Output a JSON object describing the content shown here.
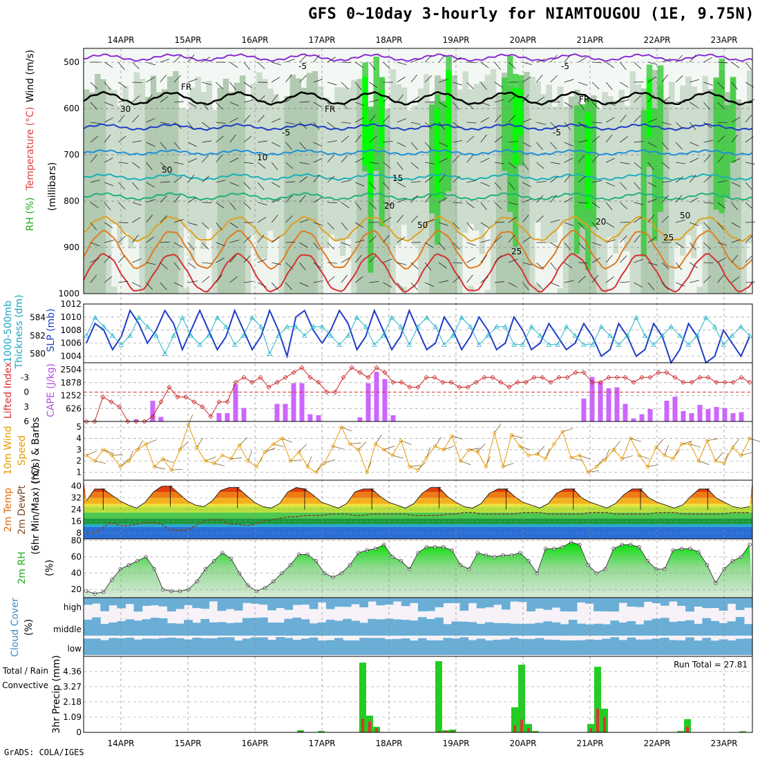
{
  "title": "GFS 0~10day 3-hourly for NIAMTOUGOU (1E, 9.75N)",
  "footer": "GrADS: COLA/IGES",
  "dates": [
    "14APR",
    "15APR",
    "16APR",
    "17APR",
    "18APR",
    "19APR",
    "20APR",
    "21APR",
    "22APR",
    "23APR"
  ],
  "colors": {
    "rh_green": "#33cc33",
    "rh_bright": "#00ff00",
    "rh_light": "#d9ead9",
    "cape_bar": "#cc66ff",
    "wind10m": "#e69900",
    "slp_line": "#1e3cc8",
    "thickness_line": "#22b4c8",
    "lifted_index": "#cc2222",
    "rh2m": "#22cc22",
    "cloud": "#6aaed6",
    "precip_total": "#22cc22",
    "precip_conv": "#e03333"
  },
  "panels": {
    "upper": {
      "y_label_rh": "RH (%)",
      "y_label_temp": "Temperature (°C)",
      "y_label_wind": "Wind (m/s)",
      "y_label_press": "(millibars)",
      "yticks": [
        "500",
        "600",
        "700",
        "800",
        "900",
        "1000"
      ],
      "contour_labels": [
        "-5",
        "FR",
        "-5",
        "10",
        "15",
        "20",
        "25",
        "30",
        "50"
      ]
    },
    "thickness": {
      "label1": "1000-500mb",
      "label2": "Thickness (dm)",
      "label3": "SLP (mb)",
      "yticks_left": [
        "584",
        "582",
        "580"
      ],
      "yticks_right": [
        "1012",
        "1010",
        "1008",
        "1006",
        "1004"
      ]
    },
    "cape": {
      "label1": "Lifted Index",
      "label2": "CAPE (J/kg)",
      "yticks_left": [
        "-3",
        "0",
        "3",
        "6"
      ],
      "yticks_right": [
        "2504",
        "1878",
        "1252",
        "626"
      ]
    },
    "wind": {
      "label1": "10m Wind",
      "label2": "Speed",
      "label3": "(m/s) & Barbs",
      "yticks": [
        "5",
        "4",
        "3",
        "2",
        "1"
      ]
    },
    "temp2m": {
      "label1": "2m Temp",
      "label2": "2m DewPt",
      "label3": "(6hr Min/Max) (°C)",
      "yticks": [
        "40",
        "32",
        "24",
        "16",
        "8"
      ]
    },
    "rh2m": {
      "label1": "2m RH",
      "label2": "(%)",
      "yticks": [
        "80",
        "60",
        "40",
        "20"
      ]
    },
    "cloud": {
      "label1": "Cloud Cover",
      "label2": "(%)",
      "levels": [
        "high",
        "middle",
        "low"
      ]
    },
    "precip": {
      "label1": "Total / Rain",
      "label2": "Convective",
      "label3": "3hr Precip (mm)",
      "yticks": [
        "4.36",
        "3.27",
        "2.18",
        "1.09",
        "0"
      ],
      "run_total": "Run Total = 27.81"
    }
  },
  "chart_data": [
    {
      "type": "line",
      "title": "SLP (mb)",
      "series": [
        {
          "name": "SLP (mb)",
          "values": [
            1006,
            1009,
            1008,
            1005,
            1007,
            1011,
            1009,
            1006,
            1008,
            1011,
            1009,
            1005,
            1008,
            1011,
            1008,
            1005,
            1007,
            1011,
            1008,
            1005,
            1007,
            1011,
            1008,
            1004,
            1010,
            1011,
            1008,
            1006,
            1008,
            1011,
            1009,
            1005,
            1007,
            1011,
            1008,
            1005,
            1007,
            1011,
            1008,
            1005,
            1006,
            1010,
            1008,
            1005,
            1007,
            1010,
            1008,
            1005,
            1006,
            1010,
            1008,
            1005,
            1006,
            1009,
            1007,
            1005,
            1006,
            1009,
            1007,
            1004,
            1005,
            1009,
            1007,
            1004,
            1005,
            1009,
            1007,
            1003,
            1005,
            1009,
            1007,
            1003,
            1004,
            1008,
            1006,
            1004,
            1007
          ]
        }
      ],
      "ylim": [
        1003,
        1012
      ]
    },
    {
      "type": "line",
      "title": "1000-500mb Thickness (dm)",
      "series": [
        {
          "name": "1000-500mb Thickness (dm)",
          "values": [
            582,
            584,
            583,
            582,
            581,
            582,
            584,
            583,
            582,
            580,
            582,
            584,
            582,
            581,
            582,
            584,
            583,
            581,
            582,
            584,
            583,
            580,
            582,
            583,
            583,
            582,
            583,
            583,
            582,
            581,
            582,
            584,
            583,
            581,
            582,
            584,
            583,
            581,
            583,
            584,
            583,
            581,
            582,
            584,
            583,
            581,
            582,
            583,
            583,
            581,
            581,
            583,
            582,
            581,
            581,
            583,
            582,
            581,
            581,
            583,
            582,
            581,
            582,
            584,
            582,
            581,
            582,
            583,
            582,
            581,
            582,
            584,
            583,
            581,
            582,
            583,
            582
          ]
        }
      ],
      "ylim": [
        579,
        585.5
      ]
    },
    {
      "type": "bar",
      "title": "CAPE (J/kg)",
      "series": [
        {
          "name": "CAPE (J/kg)",
          "values": [
            0,
            0,
            0,
            0,
            0,
            0,
            100,
            0,
            1000,
            220,
            0,
            0,
            0,
            0,
            0,
            0,
            400,
            400,
            1800,
            650,
            0,
            0,
            0,
            850,
            850,
            1850,
            1850,
            350,
            300,
            0,
            0,
            0,
            0,
            200,
            1850,
            2400,
            2050,
            300,
            0,
            0,
            0,
            0,
            0,
            0,
            0,
            0,
            0,
            0,
            0,
            0,
            0,
            0,
            0,
            0,
            0,
            0,
            0,
            0,
            0,
            0,
            1100,
            2150,
            1900,
            1600,
            1650,
            850,
            150,
            350,
            600,
            0,
            1000,
            1200,
            500,
            400,
            800,
            600,
            700,
            650,
            400,
            450,
            0
          ]
        }
      ],
      "ylim": [
        0,
        2504
      ]
    },
    {
      "type": "line",
      "title": "Lifted Index",
      "series": [
        {
          "name": "Lifted Index",
          "values": [
            6,
            6,
            1,
            2,
            3,
            6,
            6,
            6,
            5,
            2,
            -1,
            1,
            1,
            2,
            3,
            5,
            2,
            2,
            -2,
            -3,
            -2,
            -3,
            -1,
            -2,
            -3,
            -4,
            -5,
            -3,
            -2,
            0,
            0,
            -3,
            -5,
            -4,
            -3,
            -5,
            -4,
            -2,
            -2,
            -1,
            -1,
            -3,
            -3,
            -2,
            -2,
            -1,
            -1,
            -2,
            -3,
            -3,
            -2,
            -1,
            -2,
            -2,
            -3,
            -3,
            -2,
            -3,
            -3,
            -4,
            -4,
            -2,
            -2,
            -3,
            -3,
            -3,
            -2,
            -3,
            -3,
            -4,
            -4,
            -3,
            -2,
            -2,
            -3,
            -3,
            -2,
            -2,
            -2,
            -3,
            -2
          ]
        }
      ],
      "ylim": [
        -6,
        6
      ]
    },
    {
      "type": "line",
      "title": "10m Wind Speed (m/s)",
      "series": [
        {
          "name": "10m Wind Speed",
          "values": [
            2.5,
            2,
            3,
            2.5,
            1.5,
            2,
            3,
            3.5,
            1.5,
            2.2,
            1.2,
            3,
            5.2,
            3.2,
            2,
            1.8,
            2.5,
            2.2,
            3.4,
            2,
            1.5,
            2.8,
            3.5,
            4,
            2,
            2.8,
            1.5,
            1,
            1.8,
            3.3,
            5,
            3.5,
            3,
            1,
            3.5,
            3,
            2.5,
            3.8,
            1.5,
            1.2,
            2.3,
            3.3,
            3,
            4.2,
            2,
            3,
            2.8,
            1.5,
            4.5,
            1.5,
            4.3,
            3.3,
            2.5,
            2.6,
            2.2,
            3.5,
            4.6,
            2.3,
            2.5,
            1,
            1.5,
            2.1,
            3,
            2.2,
            4,
            2.5,
            1.5,
            3.2,
            2.5,
            2.2,
            3.5,
            3.5,
            2,
            3.8,
            2,
            1.8,
            3.2,
            2.5,
            4
          ]
        }
      ],
      "ylim": [
        0,
        5.5
      ]
    },
    {
      "type": "area",
      "title": "2m Temp (6hr Min/Max) (°C)",
      "series": [
        {
          "name": "2m Temp",
          "values": [
            30,
            38,
            38,
            34,
            30,
            27,
            25,
            29,
            36,
            40,
            40,
            35,
            30,
            27,
            26,
            30,
            37,
            39,
            39,
            34,
            29,
            26,
            25,
            28,
            36,
            39,
            38,
            34,
            29,
            27,
            25,
            28,
            36,
            38,
            38,
            33,
            29,
            27,
            25,
            28,
            35,
            39,
            39,
            33,
            29,
            26,
            25,
            28,
            35,
            38,
            38,
            33,
            29,
            27,
            25,
            28,
            35,
            38,
            38,
            32,
            29,
            27,
            25,
            28,
            34,
            38,
            38,
            32,
            29,
            27,
            25,
            27,
            33,
            38,
            38,
            32,
            29,
            26,
            25,
            26
          ]
        },
        {
          "name": "2m DewPt",
          "values": [
            8,
            8,
            12,
            15,
            13,
            13,
            14,
            15,
            15,
            14,
            10,
            10,
            10,
            13,
            16,
            17,
            17,
            14,
            14,
            13,
            14,
            16,
            17,
            18,
            19,
            19,
            20,
            20,
            20,
            21,
            21,
            21,
            20,
            20,
            21,
            21,
            21,
            21,
            21,
            20,
            20,
            20,
            20,
            21,
            21,
            22,
            22,
            21,
            21,
            21,
            21,
            21,
            22,
            22,
            22,
            21,
            21,
            21,
            21,
            21,
            22,
            22,
            22,
            21,
            21,
            21,
            21,
            21,
            22,
            22,
            22,
            21,
            21,
            21,
            21,
            21,
            21,
            22,
            22,
            22
          ]
        }
      ],
      "ylim": [
        4,
        44
      ]
    },
    {
      "type": "area",
      "title": "2m RH (%)",
      "series": [
        {
          "name": "2m RH",
          "values": [
            18,
            15,
            17,
            32,
            45,
            50,
            55,
            60,
            45,
            20,
            18,
            18,
            20,
            30,
            45,
            55,
            65,
            58,
            40,
            25,
            18,
            22,
            30,
            40,
            50,
            63,
            63,
            55,
            40,
            35,
            40,
            50,
            65,
            68,
            70,
            75,
            60,
            55,
            45,
            65,
            72,
            72,
            72,
            68,
            50,
            45,
            65,
            62,
            60,
            62,
            62,
            65,
            55,
            40,
            70,
            70,
            72,
            78,
            75,
            50,
            40,
            45,
            70,
            75,
            75,
            72,
            55,
            45,
            45,
            68,
            70,
            70,
            66,
            50,
            28,
            45,
            55,
            60,
            75
          ]
        }
      ],
      "ylim": [
        10,
        82
      ]
    },
    {
      "type": "bar",
      "title": "3hr Precip (mm)",
      "series": [
        {
          "name": "Total / Rain",
          "values": [
            0,
            0,
            0,
            0,
            0,
            0,
            0,
            0,
            0,
            0,
            0,
            0,
            0,
            0,
            0,
            0,
            0,
            0,
            0,
            0,
            0,
            0,
            0,
            0,
            0,
            0,
            0,
            0,
            0,
            0,
            0,
            0.15,
            0,
            0,
            0.1,
            0,
            0,
            0,
            0,
            0,
            5.0,
            1.2,
            0.4,
            0,
            0,
            0,
            0,
            0,
            0,
            0,
            0,
            5.1,
            0.15,
            0.2,
            0,
            0,
            0,
            0,
            0,
            0,
            0,
            0,
            1.8,
            4.85,
            0.6,
            0.1,
            0,
            0,
            0,
            0,
            0,
            0,
            0,
            0.6,
            4.7,
            1.7,
            0,
            0,
            0,
            0,
            0,
            0,
            0,
            0,
            0,
            0,
            0.1,
            0.95,
            0,
            0,
            0,
            0,
            0,
            0,
            0,
            0.08,
            0
          ]
        },
        {
          "name": "Convective",
          "values": [
            0,
            0,
            0,
            0,
            0,
            0,
            0,
            0,
            0,
            0,
            0,
            0,
            0,
            0,
            0,
            0,
            0,
            0,
            0,
            0,
            0,
            0,
            0,
            0,
            0,
            0,
            0,
            0,
            0,
            0,
            0,
            0.1,
            0,
            0,
            0.05,
            0,
            0,
            0,
            0,
            0,
            1.0,
            0.8,
            0.3,
            0,
            0,
            0,
            0,
            0,
            0,
            0,
            0,
            0.1,
            0.1,
            0.1,
            0,
            0,
            0,
            0,
            0,
            0,
            0,
            0,
            0.5,
            0.9,
            0.3,
            0.05,
            0,
            0,
            0,
            0,
            0,
            0,
            0,
            0.3,
            1.7,
            1.1,
            0,
            0,
            0,
            0,
            0,
            0,
            0,
            0,
            0,
            0,
            0.05,
            0.4,
            0,
            0,
            0,
            0,
            0,
            0,
            0,
            0.05,
            0
          ]
        }
      ],
      "ylim": [
        0,
        5.2
      ]
    }
  ]
}
